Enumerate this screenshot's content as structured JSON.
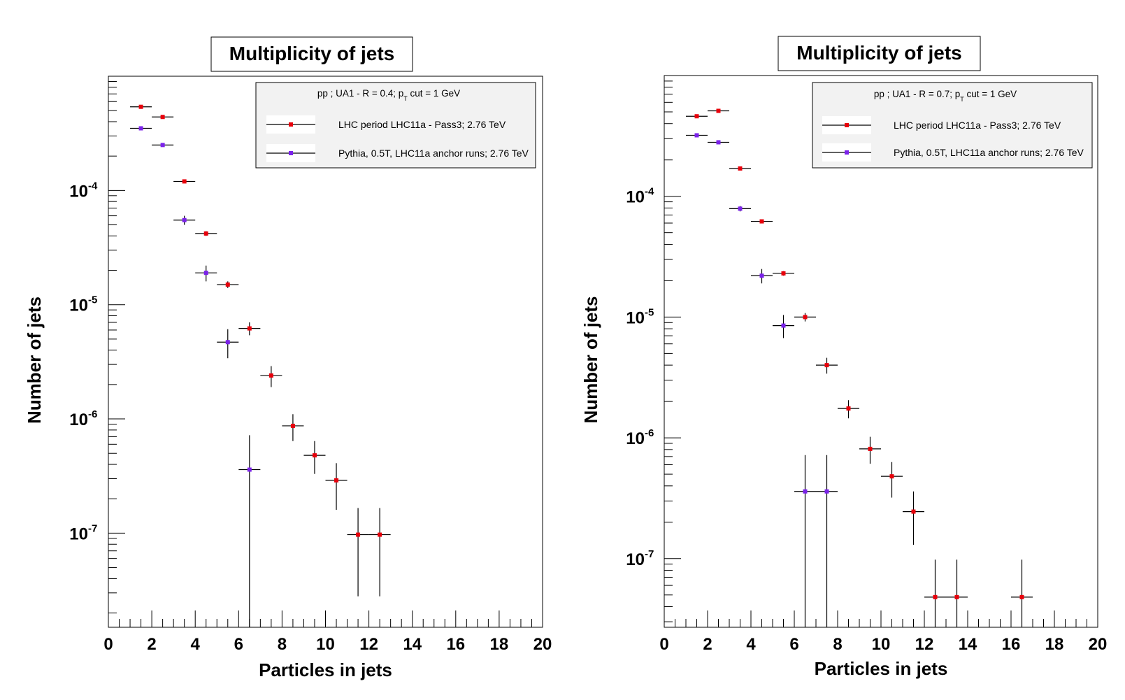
{
  "chart_data": [
    {
      "type": "scatter",
      "title": "Multiplicity of jets",
      "xlabel": "Particles in jets",
      "ylabel": "Number of jets",
      "xlim": [
        0,
        20
      ],
      "ylim": [
        1.5e-08,
        0.001
      ],
      "yscale": "log",
      "x_ticks": [
        "0",
        "2",
        "4",
        "6",
        "8",
        "10",
        "12",
        "14",
        "16",
        "18",
        "20"
      ],
      "y_ticks": [
        {
          "base": "10",
          "exp": "-7",
          "value": 1e-07
        },
        {
          "base": "10",
          "exp": "-6",
          "value": 1e-06
        },
        {
          "base": "10",
          "exp": "-5",
          "value": 1e-05
        },
        {
          "base": "10",
          "exp": "-4",
          "value": 0.0001
        }
      ],
      "legend": {
        "placement": "top-right",
        "header": {
          "pre": "pp ; UA1 - R = 0.4; p",
          "sub": "T",
          "post": " cut = 1 GeV"
        },
        "entries": [
          "LHC period LHC11a - Pass3; 2.76 TeV",
          "Pythia, 0.5T, LHC11a anchor runs; 2.76 TeV"
        ]
      },
      "series": [
        {
          "name": "LHC period LHC11a - Pass3; 2.76 TeV",
          "color": "#e8000b",
          "points": [
            {
              "x": 1.5,
              "y": 0.00054,
              "ylo": 0.00054,
              "yhi": 0.00054
            },
            {
              "x": 2.5,
              "y": 0.00044,
              "ylo": 0.00044,
              "yhi": 0.00044
            },
            {
              "x": 3.5,
              "y": 0.00012,
              "ylo": 0.00012,
              "yhi": 0.00012
            },
            {
              "x": 4.5,
              "y": 4.2e-05,
              "ylo": 4e-05,
              "yhi": 4.4e-05
            },
            {
              "x": 5.5,
              "y": 1.5e-05,
              "ylo": 1.4e-05,
              "yhi": 1.6e-05
            },
            {
              "x": 6.5,
              "y": 6.2e-06,
              "ylo": 5.4e-06,
              "yhi": 7e-06
            },
            {
              "x": 7.5,
              "y": 2.4e-06,
              "ylo": 1.9e-06,
              "yhi": 2.9e-06
            },
            {
              "x": 8.5,
              "y": 8.7e-07,
              "ylo": 6.4e-07,
              "yhi": 1.1e-06
            },
            {
              "x": 9.5,
              "y": 4.8e-07,
              "ylo": 3.3e-07,
              "yhi": 6.4e-07
            },
            {
              "x": 10.5,
              "y": 2.9e-07,
              "ylo": 1.6e-07,
              "yhi": 4.1e-07
            },
            {
              "x": 11.5,
              "y": 9.7e-08,
              "ylo": 2.8e-08,
              "yhi": 1.66e-07
            },
            {
              "x": 12.5,
              "y": 9.7e-08,
              "ylo": 2.8e-08,
              "yhi": 1.66e-07
            }
          ]
        },
        {
          "name": "Pythia, 0.5T, LHC11a anchor runs; 2.76 TeV",
          "color": "#7b22ea",
          "points": [
            {
              "x": 1.5,
              "y": 0.00035,
              "ylo": 0.00035,
              "yhi": 0.00035
            },
            {
              "x": 2.5,
              "y": 0.00025,
              "ylo": 0.00025,
              "yhi": 0.00025
            },
            {
              "x": 3.5,
              "y": 5.5e-05,
              "ylo": 5e-05,
              "yhi": 6e-05
            },
            {
              "x": 4.5,
              "y": 1.9e-05,
              "ylo": 1.6e-05,
              "yhi": 2.2e-05
            },
            {
              "x": 5.5,
              "y": 4.7e-06,
              "ylo": 3.4e-06,
              "yhi": 6.1e-06
            },
            {
              "x": 6.5,
              "y": 3.6e-07,
              "ylo": 1.5e-08,
              "yhi": 7.2e-07
            }
          ]
        }
      ]
    },
    {
      "type": "scatter",
      "title": "Multiplicity of jets",
      "xlabel": "Particles in jets",
      "ylabel": "Number of jets",
      "xlim": [
        0,
        20
      ],
      "ylim": [
        2.7e-08,
        0.001
      ],
      "yscale": "log",
      "x_ticks": [
        "0",
        "2",
        "4",
        "6",
        "8",
        "10",
        "12",
        "14",
        "16",
        "18",
        "20"
      ],
      "y_ticks": [
        {
          "base": "10",
          "exp": "-7",
          "value": 1e-07
        },
        {
          "base": "10",
          "exp": "-6",
          "value": 1e-06
        },
        {
          "base": "10",
          "exp": "-5",
          "value": 1e-05
        },
        {
          "base": "10",
          "exp": "-4",
          "value": 0.0001
        }
      ],
      "legend": {
        "placement": "top-right",
        "header": {
          "pre": "pp ; UA1 - R = 0.7; p",
          "sub": "T",
          "post": " cut = 1 GeV"
        },
        "entries": [
          "LHC period LHC11a - Pass3; 2.76 TeV",
          "Pythia, 0.5T, LHC11a anchor runs; 2.76 TeV"
        ]
      },
      "series": [
        {
          "name": "LHC period LHC11a - Pass3; 2.76 TeV",
          "color": "#e8000b",
          "points": [
            {
              "x": 1.5,
              "y": 0.00046,
              "ylo": 0.00046,
              "yhi": 0.00046
            },
            {
              "x": 2.5,
              "y": 0.00051,
              "ylo": 0.00051,
              "yhi": 0.00051
            },
            {
              "x": 3.5,
              "y": 0.00017,
              "ylo": 0.00017,
              "yhi": 0.00017
            },
            {
              "x": 4.5,
              "y": 6.2e-05,
              "ylo": 6e-05,
              "yhi": 6.4e-05
            },
            {
              "x": 5.5,
              "y": 2.3e-05,
              "ylo": 2.2e-05,
              "yhi": 2.4e-05
            },
            {
              "x": 6.5,
              "y": 1e-05,
              "ylo": 9.2e-06,
              "yhi": 1.08e-05
            },
            {
              "x": 7.5,
              "y": 4e-06,
              "ylo": 3.4e-06,
              "yhi": 4.6e-06
            },
            {
              "x": 8.5,
              "y": 1.75e-06,
              "ylo": 1.45e-06,
              "yhi": 2.05e-06
            },
            {
              "x": 9.5,
              "y": 8.1e-07,
              "ylo": 6.1e-07,
              "yhi": 1.02e-06
            },
            {
              "x": 10.5,
              "y": 4.8e-07,
              "ylo": 3.2e-07,
              "yhi": 6.3e-07
            },
            {
              "x": 11.5,
              "y": 2.45e-07,
              "ylo": 1.3e-07,
              "yhi": 3.6e-07
            },
            {
              "x": 12.5,
              "y": 4.8e-08,
              "ylo": 2.7e-08,
              "yhi": 9.8e-08
            },
            {
              "x": 13.5,
              "y": 4.8e-08,
              "ylo": 2.7e-08,
              "yhi": 9.8e-08
            },
            {
              "x": 16.5,
              "y": 4.8e-08,
              "ylo": 2.7e-08,
              "yhi": 9.8e-08
            }
          ]
        },
        {
          "name": "Pythia, 0.5T, LHC11a anchor runs; 2.76 TeV",
          "color": "#7b22ea",
          "points": [
            {
              "x": 1.5,
              "y": 0.00032,
              "ylo": 0.00032,
              "yhi": 0.00032
            },
            {
              "x": 2.5,
              "y": 0.00028,
              "ylo": 0.00028,
              "yhi": 0.00028
            },
            {
              "x": 3.5,
              "y": 7.9e-05,
              "ylo": 7.5e-05,
              "yhi": 8.3e-05
            },
            {
              "x": 4.5,
              "y": 2.2e-05,
              "ylo": 1.9e-05,
              "yhi": 2.5e-05
            },
            {
              "x": 5.5,
              "y": 8.5e-06,
              "ylo": 6.7e-06,
              "yhi": 1.04e-05
            },
            {
              "x": 6.5,
              "y": 3.6e-07,
              "ylo": 2.7e-08,
              "yhi": 7.2e-07
            },
            {
              "x": 7.5,
              "y": 3.6e-07,
              "ylo": 2.7e-08,
              "yhi": 7.2e-07
            }
          ]
        }
      ]
    }
  ]
}
